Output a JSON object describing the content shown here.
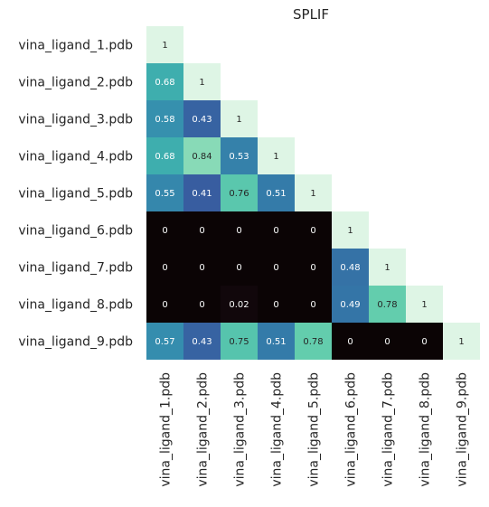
{
  "chart_data": {
    "type": "heatmap",
    "title": "SPLIF",
    "xlabel": "",
    "ylabel": "",
    "mask": "upper-triangle",
    "row_labels": [
      "vina_ligand_1.pdb",
      "vina_ligand_2.pdb",
      "vina_ligand_3.pdb",
      "vina_ligand_4.pdb",
      "vina_ligand_5.pdb",
      "vina_ligand_6.pdb",
      "vina_ligand_7.pdb",
      "vina_ligand_8.pdb",
      "vina_ligand_9.pdb"
    ],
    "col_labels": [
      "vina_ligand_1.pdb",
      "vina_ligand_2.pdb",
      "vina_ligand_3.pdb",
      "vina_ligand_4.pdb",
      "vina_ligand_5.pdb",
      "vina_ligand_6.pdb",
      "vina_ligand_7.pdb",
      "vina_ligand_8.pdb",
      "vina_ligand_9.pdb"
    ],
    "values": [
      [
        1
      ],
      [
        0.68,
        1
      ],
      [
        0.58,
        0.43,
        1
      ],
      [
        0.68,
        0.84,
        0.53,
        1
      ],
      [
        0.55,
        0.41,
        0.76,
        0.51,
        1
      ],
      [
        0,
        0,
        0,
        0,
        0,
        1
      ],
      [
        0,
        0,
        0,
        0,
        0,
        0.48,
        1
      ],
      [
        0,
        0,
        0.02,
        0,
        0,
        0.49,
        0.78,
        1
      ],
      [
        0.57,
        0.43,
        0.75,
        0.51,
        0.78,
        0,
        0,
        0,
        1
      ]
    ],
    "colormap": "mako",
    "vmin": 0,
    "vmax": 1,
    "annotations": true
  }
}
